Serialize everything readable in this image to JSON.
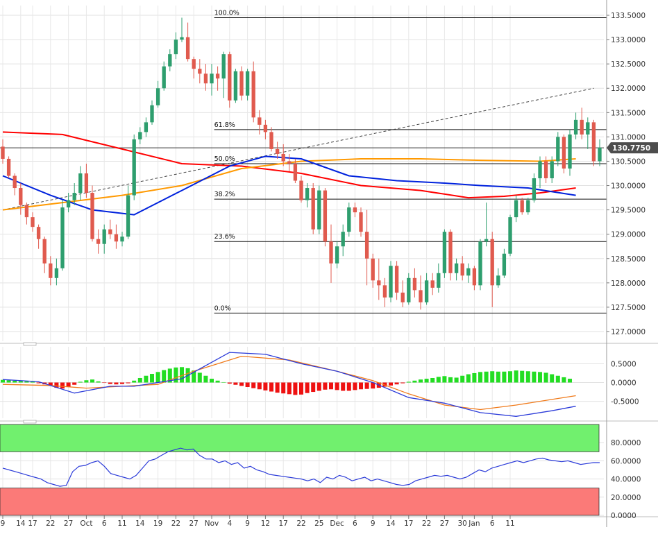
{
  "chart_data": [
    {
      "type": "candlestick",
      "panel": "price",
      "ylim": [
        126.8,
        133.7
      ],
      "y_ticks": [
        "133.5000",
        "133.0000",
        "132.5000",
        "132.0000",
        "131.5000",
        "131.0000",
        "130.5000",
        "130.0000",
        "129.5000",
        "129.0000",
        "128.5000",
        "128.0000",
        "127.5000",
        "127.0000"
      ],
      "y_tick_values": [
        133.5,
        133.0,
        132.5,
        132.0,
        131.5,
        131.0,
        130.5,
        130.0,
        129.5,
        129.0,
        128.5,
        128.0,
        127.5,
        127.0
      ],
      "x_tick_labels": [
        "9",
        "14",
        "17",
        "22",
        "27",
        "Oct",
        "6",
        "11",
        "14",
        "19",
        "22",
        "27",
        "Nov",
        "4",
        "9",
        "12",
        "17",
        "22",
        "25",
        "Dec",
        "6",
        "9",
        "14",
        "17",
        "22",
        "27",
        "30",
        "Jan",
        "6",
        "11"
      ],
      "x_tick_index": [
        0,
        3,
        5,
        8,
        11,
        14,
        17,
        20,
        23,
        26,
        29,
        32,
        35,
        38,
        41,
        44,
        47,
        50,
        53,
        56,
        59,
        62,
        65,
        68,
        71,
        74,
        77,
        79,
        82,
        85
      ],
      "candles": [
        [
          130.8,
          130.95,
          130.45,
          130.55
        ],
        [
          130.55,
          130.6,
          130.15,
          130.2
        ],
        [
          130.2,
          130.25,
          129.8,
          129.95
        ],
        [
          129.95,
          130.05,
          129.4,
          129.6
        ],
        [
          129.6,
          129.65,
          129.2,
          129.35
        ],
        [
          129.35,
          129.45,
          129.05,
          129.15
        ],
        [
          129.15,
          129.2,
          128.7,
          128.9
        ],
        [
          128.9,
          128.95,
          128.2,
          128.4
        ],
        [
          128.4,
          128.55,
          127.95,
          128.1
        ],
        [
          128.1,
          128.5,
          127.95,
          128.3
        ],
        [
          128.3,
          129.7,
          128.25,
          129.55
        ],
        [
          129.55,
          129.85,
          129.45,
          129.7
        ],
        [
          129.7,
          130.05,
          129.6,
          129.85
        ],
        [
          129.85,
          130.4,
          129.7,
          130.25
        ],
        [
          130.25,
          130.45,
          129.75,
          129.85
        ],
        [
          129.85,
          130.0,
          128.85,
          128.9
        ],
        [
          128.9,
          129.1,
          128.6,
          128.8
        ],
        [
          128.8,
          129.2,
          128.6,
          129.1
        ],
        [
          129.1,
          129.3,
          128.9,
          129.0
        ],
        [
          129.0,
          129.2,
          128.7,
          128.85
        ],
        [
          128.85,
          129.05,
          128.75,
          128.95
        ],
        [
          128.95,
          130.0,
          128.9,
          129.8
        ],
        [
          129.8,
          131.05,
          129.7,
          130.95
        ],
        [
          130.95,
          131.2,
          130.85,
          131.1
        ],
        [
          131.1,
          131.4,
          131.0,
          131.3
        ],
        [
          131.3,
          131.75,
          131.25,
          131.65
        ],
        [
          131.65,
          132.15,
          131.6,
          132.0
        ],
        [
          132.0,
          132.55,
          131.95,
          132.45
        ],
        [
          132.45,
          132.8,
          132.35,
          132.7
        ],
        [
          132.7,
          133.15,
          132.6,
          133.0
        ],
        [
          133.0,
          133.45,
          132.95,
          133.05
        ],
        [
          133.05,
          133.35,
          132.55,
          132.6
        ],
        [
          132.6,
          132.65,
          132.2,
          132.4
        ],
        [
          132.4,
          132.6,
          132.1,
          132.3
        ],
        [
          132.3,
          132.5,
          131.95,
          132.1
        ],
        [
          132.1,
          132.5,
          131.85,
          132.3
        ],
        [
          132.3,
          132.45,
          131.95,
          132.2
        ],
        [
          132.2,
          132.75,
          131.8,
          132.7
        ],
        [
          132.7,
          132.75,
          131.6,
          131.75
        ],
        [
          131.75,
          132.4,
          131.7,
          132.35
        ],
        [
          132.35,
          132.45,
          131.75,
          131.85
        ],
        [
          131.85,
          132.4,
          131.75,
          132.35
        ],
        [
          132.35,
          132.55,
          131.3,
          131.4
        ],
        [
          131.4,
          131.55,
          131.05,
          131.25
        ],
        [
          131.25,
          131.35,
          130.95,
          131.1
        ],
        [
          131.1,
          131.2,
          130.7,
          130.75
        ],
        [
          130.75,
          130.9,
          130.55,
          130.65
        ],
        [
          130.65,
          130.85,
          130.4,
          130.5
        ],
        [
          130.5,
          130.65,
          130.3,
          130.45
        ],
        [
          130.45,
          130.55,
          130.05,
          130.1
        ],
        [
          130.1,
          130.2,
          129.65,
          129.7
        ],
        [
          129.7,
          130.05,
          129.55,
          129.95
        ],
        [
          129.95,
          130.05,
          129.0,
          129.1
        ],
        [
          129.1,
          130.0,
          129.0,
          129.9
        ],
        [
          129.9,
          129.95,
          128.75,
          128.85
        ],
        [
          128.85,
          129.2,
          128.0,
          128.4
        ],
        [
          128.4,
          128.85,
          128.3,
          128.75
        ],
        [
          128.75,
          129.2,
          128.55,
          129.05
        ],
        [
          129.05,
          129.65,
          128.95,
          129.55
        ],
        [
          129.55,
          129.65,
          129.35,
          129.45
        ],
        [
          129.45,
          129.55,
          128.95,
          129.05
        ],
        [
          129.05,
          129.5,
          127.95,
          128.5
        ],
        [
          128.5,
          128.6,
          127.9,
          128.05
        ],
        [
          128.05,
          128.5,
          127.65,
          127.95
        ],
        [
          127.95,
          128.1,
          127.5,
          127.7
        ],
        [
          127.7,
          128.45,
          127.6,
          128.35
        ],
        [
          128.35,
          128.45,
          127.65,
          127.8
        ],
        [
          127.8,
          128.05,
          127.5,
          127.6
        ],
        [
          127.6,
          128.2,
          127.55,
          128.1
        ],
        [
          128.1,
          128.3,
          127.7,
          127.85
        ],
        [
          127.85,
          128.15,
          127.45,
          127.6
        ],
        [
          127.6,
          128.2,
          127.55,
          128.05
        ],
        [
          128.05,
          128.2,
          127.75,
          127.9
        ],
        [
          127.9,
          128.4,
          127.8,
          128.2
        ],
        [
          128.2,
          129.1,
          128.1,
          129.05
        ],
        [
          129.05,
          129.1,
          128.05,
          128.2
        ],
        [
          128.2,
          128.5,
          128.05,
          128.4
        ],
        [
          128.4,
          128.55,
          128.05,
          128.15
        ],
        [
          128.15,
          128.4,
          128.0,
          128.3
        ],
        [
          128.3,
          128.35,
          127.85,
          127.95
        ],
        [
          127.95,
          128.9,
          127.85,
          128.85
        ],
        [
          128.85,
          129.65,
          128.75,
          128.9
        ],
        [
          128.9,
          129.05,
          127.5,
          127.95
        ],
        [
          127.95,
          128.3,
          127.9,
          128.15
        ],
        [
          128.15,
          128.7,
          128.1,
          128.6
        ],
        [
          128.6,
          129.4,
          128.55,
          129.35
        ],
        [
          129.35,
          129.8,
          129.25,
          129.7
        ],
        [
          129.7,
          129.75,
          129.4,
          129.45
        ],
        [
          129.45,
          129.75,
          129.4,
          129.7
        ],
        [
          129.7,
          130.25,
          129.65,
          130.15
        ],
        [
          130.15,
          130.6,
          129.95,
          130.5
        ],
        [
          130.5,
          130.6,
          130.05,
          130.15
        ],
        [
          130.15,
          130.6,
          130.05,
          130.5
        ],
        [
          130.5,
          131.1,
          130.4,
          131.0
        ],
        [
          131.0,
          131.05,
          130.25,
          130.35
        ],
        [
          130.35,
          131.15,
          130.2,
          131.05
        ],
        [
          131.05,
          131.5,
          130.95,
          131.35
        ],
        [
          131.35,
          131.6,
          130.95,
          131.05
        ],
        [
          131.05,
          131.4,
          130.75,
          131.3
        ],
        [
          131.3,
          131.35,
          130.4,
          130.5
        ],
        [
          130.5,
          130.95,
          130.4,
          130.78
        ]
      ],
      "ma_series": [
        {
          "color": "#ff0000",
          "points": [
            [
              0,
              131.1
            ],
            [
              10,
              131.05
            ],
            [
              20,
              130.75
            ],
            [
              30,
              130.45
            ],
            [
              40,
              130.4
            ],
            [
              50,
              130.25
            ],
            [
              60,
              130.0
            ],
            [
              70,
              129.9
            ],
            [
              78,
              129.75
            ],
            [
              84,
              129.78
            ],
            [
              90,
              129.85
            ],
            [
              96,
              129.95
            ]
          ]
        },
        {
          "color": "#ff9900",
          "points": [
            [
              0,
              129.5
            ],
            [
              10,
              129.65
            ],
            [
              20,
              129.8
            ],
            [
              30,
              130.0
            ],
            [
              40,
              130.35
            ],
            [
              50,
              130.5
            ],
            [
              60,
              130.55
            ],
            [
              70,
              130.55
            ],
            [
              80,
              130.52
            ],
            [
              90,
              130.5
            ],
            [
              96,
              130.55
            ]
          ]
        },
        {
          "color": "#0022dd",
          "points": [
            [
              0,
              130.2
            ],
            [
              8,
              129.8
            ],
            [
              15,
              129.5
            ],
            [
              22,
              129.4
            ],
            [
              30,
              129.9
            ],
            [
              38,
              130.4
            ],
            [
              44,
              130.6
            ],
            [
              50,
              130.55
            ],
            [
              58,
              130.2
            ],
            [
              66,
              130.1
            ],
            [
              74,
              130.05
            ],
            [
              80,
              130.0
            ],
            [
              88,
              129.95
            ],
            [
              96,
              129.8
            ]
          ]
        }
      ],
      "trendline": {
        "from": [
          0,
          129.5
        ],
        "to": [
          99,
          132.0
        ],
        "style": "dashed"
      },
      "fibonacci": [
        {
          "label": "100.0%",
          "value": 133.45
        },
        {
          "label": "61.8%",
          "value": 131.15
        },
        {
          "label": "50.0%",
          "value": 130.45
        },
        {
          "label": "38.2%",
          "value": 129.72
        },
        {
          "label": "23.6%",
          "value": 128.85
        },
        {
          "label": "0.0%",
          "value": 127.38
        }
      ],
      "last_price_label": "130.7750",
      "last_price_value": 130.775,
      "colors": {
        "up": "#2e9e6e",
        "down": "#e05a4e",
        "grid": "#dcdcdc",
        "label_bg": "#4d4d4d"
      }
    },
    {
      "type": "histogram+lines",
      "panel": "macd",
      "ylim": [
        -0.95,
        0.95
      ],
      "y_ticks": [
        "0.5000",
        "0.0000",
        "-0.5000"
      ],
      "y_tick_values": [
        0.5,
        0.0,
        -0.5
      ],
      "histogram": [
        0.07,
        0.06,
        0.05,
        0.04,
        0.03,
        0.02,
        -0.02,
        -0.05,
        -0.09,
        -0.14,
        -0.16,
        -0.12,
        -0.06,
        0.02,
        0.06,
        0.08,
        0.03,
        -0.01,
        -0.04,
        -0.05,
        -0.04,
        -0.02,
        0.05,
        0.12,
        0.18,
        0.23,
        0.28,
        0.33,
        0.37,
        0.4,
        0.41,
        0.38,
        0.32,
        0.26,
        0.18,
        0.1,
        0.05,
        0.01,
        -0.03,
        -0.06,
        -0.09,
        -0.12,
        -0.15,
        -0.18,
        -0.21,
        -0.24,
        -0.27,
        -0.29,
        -0.31,
        -0.33,
        -0.32,
        -0.28,
        -0.25,
        -0.22,
        -0.19,
        -0.18,
        -0.2,
        -0.22,
        -0.22,
        -0.2,
        -0.18,
        -0.17,
        -0.16,
        -0.14,
        -0.11,
        -0.08,
        -0.05,
        -0.02,
        0.02,
        0.05,
        0.08,
        0.1,
        0.12,
        0.15,
        0.17,
        0.14,
        0.13,
        0.18,
        0.22,
        0.25,
        0.28,
        0.29,
        0.3,
        0.29,
        0.29,
        0.3,
        0.32,
        0.31,
        0.3,
        0.29,
        0.28,
        0.26,
        0.22,
        0.18,
        0.14,
        0.1
      ],
      "macd_line": {
        "color": "#2b3bd9",
        "points": [
          [
            0,
            0.08
          ],
          [
            6,
            0.02
          ],
          [
            12,
            -0.28
          ],
          [
            18,
            -0.1
          ],
          [
            22,
            -0.1
          ],
          [
            30,
            0.1
          ],
          [
            38,
            0.8
          ],
          [
            44,
            0.75
          ],
          [
            50,
            0.5
          ],
          [
            56,
            0.3
          ],
          [
            62,
            0.0
          ],
          [
            68,
            -0.4
          ],
          [
            74,
            -0.55
          ],
          [
            80,
            -0.8
          ],
          [
            86,
            -0.9
          ],
          [
            92,
            -0.75
          ],
          [
            96,
            -0.63
          ]
        ]
      },
      "signal_line": {
        "color": "#f07a1a",
        "points": [
          [
            0,
            -0.05
          ],
          [
            8,
            -0.08
          ],
          [
            14,
            -0.15
          ],
          [
            20,
            -0.1
          ],
          [
            26,
            -0.05
          ],
          [
            32,
            0.3
          ],
          [
            40,
            0.7
          ],
          [
            48,
            0.6
          ],
          [
            56,
            0.3
          ],
          [
            62,
            0.05
          ],
          [
            68,
            -0.3
          ],
          [
            74,
            -0.6
          ],
          [
            80,
            -0.72
          ],
          [
            86,
            -0.6
          ],
          [
            92,
            -0.45
          ],
          [
            96,
            -0.35
          ]
        ]
      }
    },
    {
      "type": "line",
      "panel": "rsi",
      "ylim": [
        0,
        100
      ],
      "y_ticks": [
        "80.0000",
        "60.0000",
        "40.0000",
        "20.0000",
        "0.0000"
      ],
      "y_tick_values": [
        80,
        60,
        40,
        20,
        0
      ],
      "zones": [
        {
          "from": 70,
          "to": 100,
          "color": "#71f06e"
        },
        {
          "from": 0,
          "to": 30,
          "color": "#fb7a78"
        }
      ],
      "values": [
        52,
        50,
        48,
        46,
        44,
        42,
        40,
        36,
        34,
        32,
        33,
        48,
        54,
        55,
        58,
        60,
        54,
        46,
        44,
        42,
        40,
        44,
        52,
        60,
        62,
        66,
        70,
        72,
        74,
        72,
        73,
        66,
        62,
        62,
        58,
        60,
        56,
        58,
        52,
        54,
        50,
        48,
        45,
        44,
        43,
        42,
        41,
        40,
        38,
        40,
        36,
        42,
        40,
        44,
        42,
        38,
        40,
        42,
        38,
        40,
        38,
        36,
        34,
        33,
        34,
        38,
        40,
        42,
        44,
        43,
        44,
        42,
        40,
        42,
        46,
        50,
        48,
        52,
        54,
        56,
        58,
        60,
        58,
        60,
        62,
        63,
        61,
        60,
        59,
        60,
        58,
        56,
        57,
        58,
        58
      ]
    }
  ]
}
